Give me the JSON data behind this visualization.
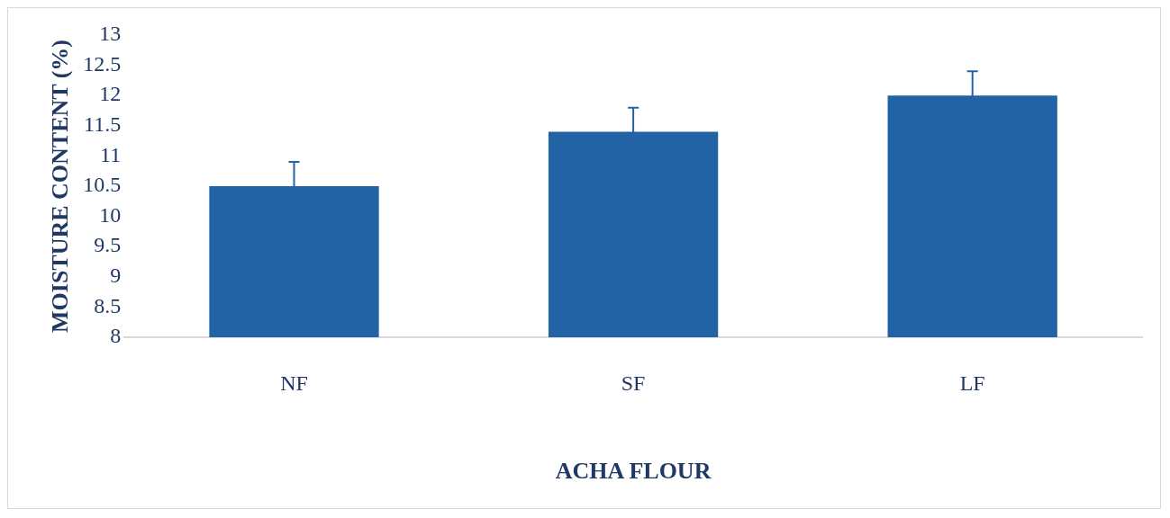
{
  "chart_data": {
    "type": "bar",
    "xlabel": "ACHA FLOUR",
    "ylabel": "MOISTURE CONTENT (%)",
    "categories": [
      "NF",
      "SF",
      "LF"
    ],
    "series": [
      {
        "color": "#2263a6",
        "values": [
          10.5,
          11.4,
          12.0
        ],
        "errors": [
          0.4,
          0.4,
          0.4
        ]
      }
    ],
    "ylim": [
      8,
      13
    ],
    "yticks": [
      8,
      8.5,
      9,
      9.5,
      10,
      10.5,
      11,
      11.5,
      12,
      12.5,
      13
    ],
    "grid": false,
    "legend": false
  }
}
